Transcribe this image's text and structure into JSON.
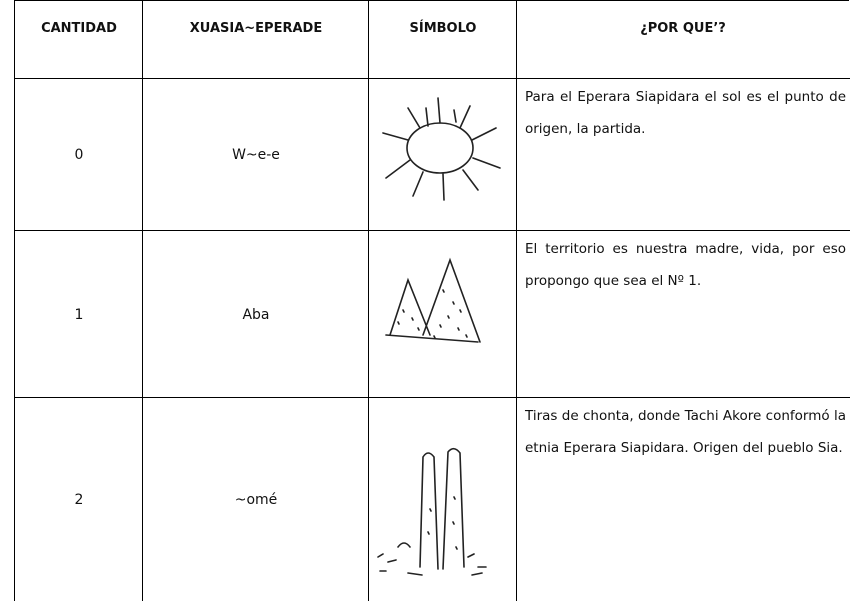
{
  "table": {
    "headers": [
      "CANTIDAD",
      "XUASIA~EPERADE",
      "SÍMBOLO",
      "¿POR QUE’?"
    ],
    "rows": [
      {
        "cantidad": 0,
        "nombre": "W~e-e",
        "razon": "Para el Eperara Siapidara el sol es el punto de origen, la partida."
      },
      {
        "cantidad": 1,
        "nombre": "Aba",
        "razon": "El territorio es nuestra madre,  vida, por eso propongo que sea el Nº 1."
      },
      {
        "cantidad": 2,
        "nombre": "~omé",
        "razon": "Tiras de chonta, donde Tachi Akore conformó la etnia Eperara Siapidara. Origen del pueblo Sia."
      }
    ]
  }
}
